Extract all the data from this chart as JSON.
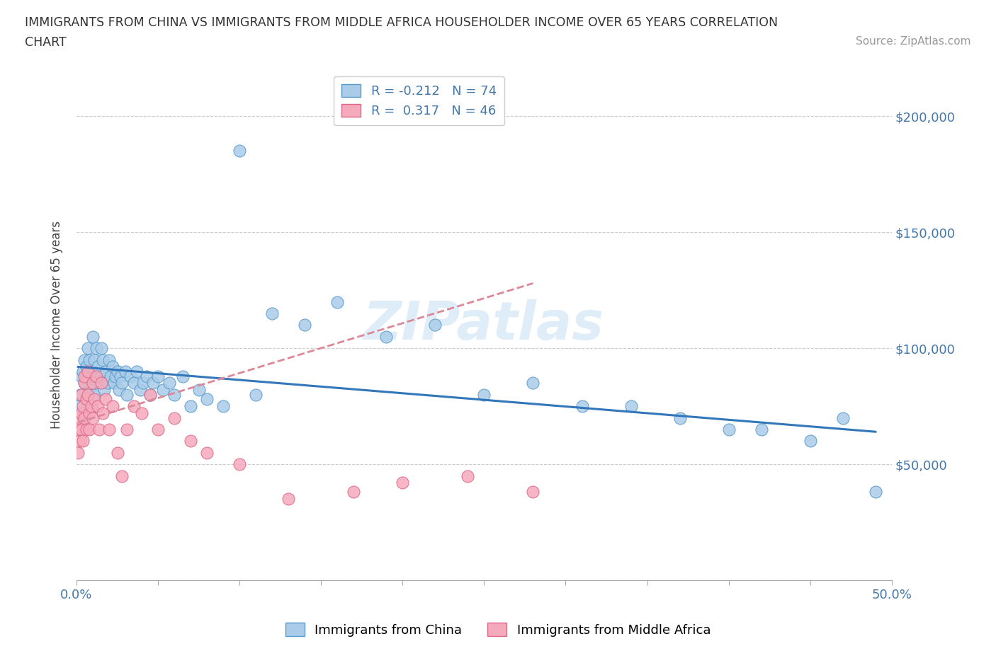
{
  "title_line1": "IMMIGRANTS FROM CHINA VS IMMIGRANTS FROM MIDDLE AFRICA HOUSEHOLDER INCOME OVER 65 YEARS CORRELATION",
  "title_line2": "CHART",
  "source": "Source: ZipAtlas.com",
  "ylabel": "Householder Income Over 65 years",
  "xlim": [
    0.0,
    0.5
  ],
  "ylim": [
    0,
    220000
  ],
  "yticks_right": [
    50000,
    100000,
    150000,
    200000
  ],
  "ytick_labels_right": [
    "$50,000",
    "$100,000",
    "$150,000",
    "$200,000"
  ],
  "xticks": [
    0.0,
    0.05,
    0.1,
    0.15,
    0.2,
    0.25,
    0.3,
    0.35,
    0.4,
    0.45,
    0.5
  ],
  "china_color": "#aacce8",
  "china_color_dark": "#5599cc",
  "middle_africa_color": "#f5aabb",
  "middle_africa_color_dark": "#dd6688",
  "trend_china_color": "#3377bb",
  "trend_africa_color": "#dd8899",
  "R_china": -0.212,
  "N_china": 74,
  "R_africa": 0.317,
  "N_africa": 46,
  "watermark": "ZIPatlas",
  "china_x": [
    0.001,
    0.002,
    0.003,
    0.004,
    0.004,
    0.005,
    0.005,
    0.006,
    0.006,
    0.007,
    0.007,
    0.008,
    0.008,
    0.009,
    0.009,
    0.01,
    0.01,
    0.011,
    0.011,
    0.012,
    0.012,
    0.013,
    0.014,
    0.015,
    0.015,
    0.016,
    0.017,
    0.018,
    0.019,
    0.02,
    0.021,
    0.022,
    0.023,
    0.024,
    0.025,
    0.026,
    0.027,
    0.028,
    0.03,
    0.031,
    0.033,
    0.035,
    0.037,
    0.039,
    0.041,
    0.043,
    0.045,
    0.047,
    0.05,
    0.053,
    0.057,
    0.06,
    0.065,
    0.07,
    0.075,
    0.08,
    0.09,
    0.1,
    0.11,
    0.12,
    0.14,
    0.16,
    0.19,
    0.22,
    0.25,
    0.28,
    0.31,
    0.34,
    0.37,
    0.4,
    0.42,
    0.45,
    0.47,
    0.49
  ],
  "china_y": [
    75000,
    80000,
    88000,
    70000,
    90000,
    85000,
    95000,
    78000,
    92000,
    88000,
    100000,
    82000,
    95000,
    88000,
    75000,
    105000,
    90000,
    95000,
    80000,
    100000,
    88000,
    92000,
    85000,
    100000,
    88000,
    95000,
    82000,
    90000,
    85000,
    95000,
    88000,
    92000,
    85000,
    88000,
    90000,
    82000,
    88000,
    85000,
    90000,
    80000,
    88000,
    85000,
    90000,
    82000,
    85000,
    88000,
    80000,
    85000,
    88000,
    82000,
    85000,
    80000,
    88000,
    75000,
    82000,
    78000,
    75000,
    185000,
    80000,
    115000,
    110000,
    120000,
    105000,
    110000,
    80000,
    85000,
    75000,
    75000,
    70000,
    65000,
    65000,
    60000,
    70000,
    38000
  ],
  "africa_x": [
    0.001,
    0.001,
    0.002,
    0.002,
    0.003,
    0.003,
    0.003,
    0.004,
    0.004,
    0.005,
    0.005,
    0.005,
    0.006,
    0.006,
    0.007,
    0.007,
    0.008,
    0.008,
    0.009,
    0.01,
    0.01,
    0.011,
    0.012,
    0.013,
    0.014,
    0.015,
    0.016,
    0.018,
    0.02,
    0.022,
    0.025,
    0.028,
    0.031,
    0.035,
    0.04,
    0.045,
    0.05,
    0.06,
    0.07,
    0.08,
    0.1,
    0.13,
    0.17,
    0.2,
    0.24,
    0.28
  ],
  "africa_y": [
    65000,
    55000,
    70000,
    60000,
    72000,
    80000,
    65000,
    75000,
    60000,
    85000,
    70000,
    88000,
    78000,
    65000,
    90000,
    80000,
    72000,
    65000,
    75000,
    85000,
    70000,
    78000,
    88000,
    75000,
    65000,
    85000,
    72000,
    78000,
    65000,
    75000,
    55000,
    45000,
    65000,
    75000,
    72000,
    80000,
    65000,
    70000,
    60000,
    55000,
    50000,
    35000,
    38000,
    42000,
    45000,
    38000
  ]
}
